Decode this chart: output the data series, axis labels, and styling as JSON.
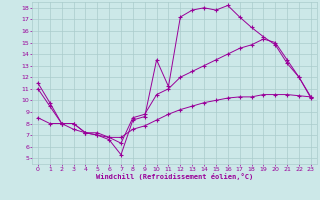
{
  "xlabel": "Windchill (Refroidissement éolien,°C)",
  "bg_color": "#cce8e8",
  "grid_color": "#aacccc",
  "line_color": "#990099",
  "xlim": [
    -0.5,
    23.5
  ],
  "ylim": [
    4.5,
    18.5
  ],
  "xticks": [
    0,
    1,
    2,
    3,
    4,
    5,
    6,
    7,
    8,
    9,
    10,
    11,
    12,
    13,
    14,
    15,
    16,
    17,
    18,
    19,
    20,
    21,
    22,
    23
  ],
  "yticks": [
    5,
    6,
    7,
    8,
    9,
    10,
    11,
    12,
    13,
    14,
    15,
    16,
    17,
    18
  ],
  "line1_x": [
    0,
    1,
    2,
    3,
    4,
    5,
    6,
    7,
    8,
    9,
    10,
    11,
    12,
    13,
    14,
    15,
    16,
    17,
    18,
    19,
    20,
    21,
    22,
    23
  ],
  "line1_y": [
    11.5,
    9.8,
    8.0,
    8.0,
    7.2,
    7.0,
    6.6,
    5.3,
    8.3,
    8.6,
    13.5,
    11.2,
    17.2,
    17.8,
    18.0,
    17.8,
    18.2,
    17.2,
    16.3,
    15.5,
    14.8,
    13.2,
    12.0,
    10.3
  ],
  "line2_x": [
    0,
    1,
    2,
    3,
    4,
    5,
    6,
    7,
    8,
    9,
    10,
    11,
    12,
    13,
    14,
    15,
    16,
    17,
    18,
    19,
    20,
    21,
    22,
    23
  ],
  "line2_y": [
    11.0,
    9.5,
    8.0,
    8.0,
    7.2,
    7.2,
    6.8,
    6.3,
    8.5,
    8.8,
    10.5,
    11.0,
    12.0,
    12.5,
    13.0,
    13.5,
    14.0,
    14.5,
    14.8,
    15.3,
    15.0,
    13.5,
    12.0,
    10.2
  ],
  "line3_x": [
    0,
    1,
    2,
    3,
    4,
    5,
    6,
    7,
    8,
    9,
    10,
    11,
    12,
    13,
    14,
    15,
    16,
    17,
    18,
    19,
    20,
    21,
    22,
    23
  ],
  "line3_y": [
    8.5,
    8.0,
    8.0,
    7.5,
    7.2,
    7.0,
    6.8,
    6.8,
    7.5,
    7.8,
    8.3,
    8.8,
    9.2,
    9.5,
    9.8,
    10.0,
    10.2,
    10.3,
    10.3,
    10.5,
    10.5,
    10.5,
    10.4,
    10.3
  ],
  "tick_fontsize": 4.5,
  "xlabel_fontsize": 5.0
}
